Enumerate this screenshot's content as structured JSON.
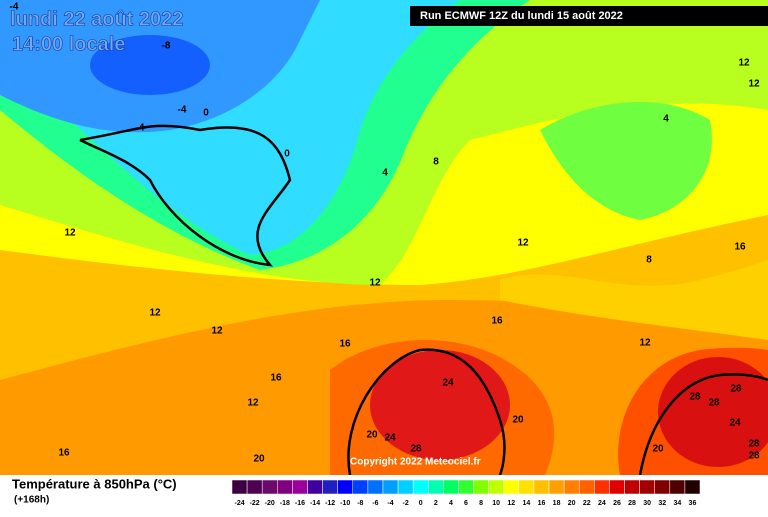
{
  "header": {
    "title_line1": "lundi 22 août 2022",
    "title_line2": "14:00 locale",
    "run": "Run ECMWF 12Z du lundi 15 août 2022"
  },
  "map": {
    "contour_labels": [
      -4,
      -8,
      -4,
      0,
      -4,
      0,
      4,
      8,
      4,
      12,
      12,
      12,
      12,
      16,
      8,
      12,
      12,
      12,
      16,
      16,
      12,
      16,
      24,
      12,
      28,
      28,
      28,
      24,
      20,
      20,
      24,
      28,
      28,
      28,
      20,
      20,
      16
    ],
    "copyright": "Copyright 2022 Meteociel.fr"
  },
  "legend": {
    "title": "Température à 850hPa (°C)",
    "lead_time": "(+168h)",
    "labels": [
      -24,
      -22,
      -20,
      -18,
      -16,
      -14,
      -12,
      -10,
      -8,
      -6,
      -4,
      -2,
      0,
      2,
      4,
      6,
      8,
      10,
      12,
      14,
      16,
      18,
      20,
      22,
      24,
      26,
      28,
      30,
      32,
      34,
      36
    ],
    "colors": [
      "#3c0040",
      "#500050",
      "#6a0a6a",
      "#800080",
      "#9a009a",
      "#4000a0",
      "#2020c0",
      "#0000ff",
      "#0040ff",
      "#0070ff",
      "#00a0ff",
      "#00d0ff",
      "#00ffff",
      "#00ffb0",
      "#00ff60",
      "#30ff30",
      "#80ff00",
      "#c0ff00",
      "#ffff00",
      "#ffe000",
      "#ffc000",
      "#ffa000",
      "#ff8000",
      "#ff6000",
      "#ff3000",
      "#e00000",
      "#c00000",
      "#a00000",
      "#800000",
      "#500000",
      "#200000"
    ]
  }
}
